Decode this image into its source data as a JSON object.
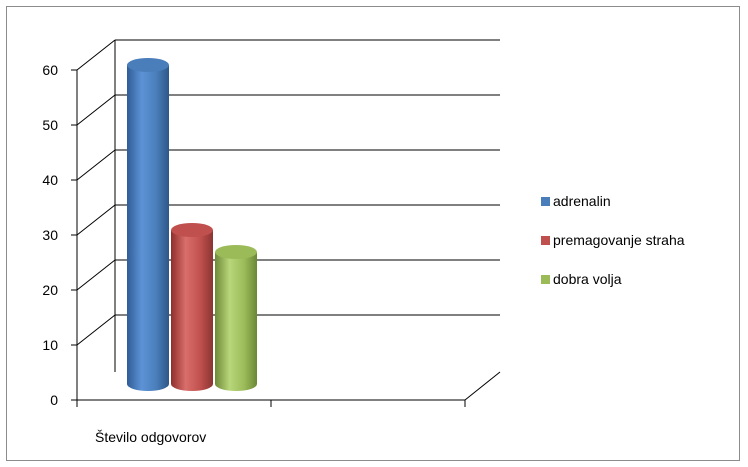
{
  "chart_data": {
    "type": "bar",
    "style": "3d-cylinder",
    "categories": [
      "Število odgovorov"
    ],
    "series": [
      {
        "name": "adrenalin",
        "values": [
          58
        ],
        "color": "#4a7ebb"
      },
      {
        "name": "premagovanje straha",
        "values": [
          28
        ],
        "color": "#c0504d"
      },
      {
        "name": "dobra volja",
        "values": [
          24
        ],
        "color": "#9bbb59"
      }
    ],
    "ylim": [
      0,
      60
    ],
    "yticks": [
      "0",
      "10",
      "20",
      "30",
      "40",
      "50",
      "60"
    ],
    "grid": true,
    "legend_position": "right"
  }
}
